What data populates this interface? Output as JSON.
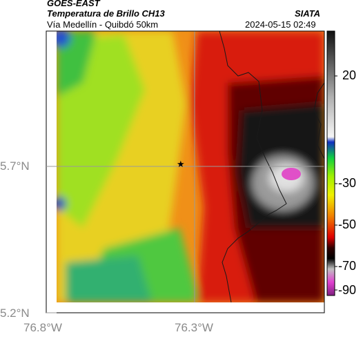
{
  "header": {
    "product": "GOES-EAST",
    "channel_title": "Temperatura de Brillo CH13",
    "organization": "SIATA",
    "region": "Vía Medellín - Quibdó 50km",
    "datetime": "2024-05-15 02:49"
  },
  "axes": {
    "lat_ticks": [
      "5.7°N",
      "5.2°N"
    ],
    "lon_ticks": [
      "76.8°W",
      "76.3°W"
    ]
  },
  "colorbar": {
    "tick_labels": [
      "20",
      "-30",
      "-50",
      "-70",
      "-90"
    ]
  },
  "marker": {
    "name": "star",
    "symbol": "★"
  },
  "colors": {
    "warm_surface": "#2e7be0",
    "mid": "#f0e020",
    "cold": "#d00000",
    "very_cold": "#101010",
    "overshoot": "#e040c0"
  }
}
